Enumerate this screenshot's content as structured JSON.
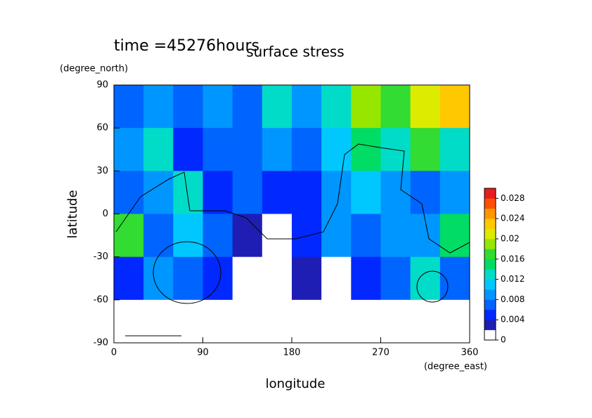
{
  "chart_data": {
    "type": "contour",
    "title": "surface stress",
    "annotation": "time =45276hours",
    "x_label": "longitude",
    "y_label": "latitude",
    "x_units": "(degree_east)",
    "y_units": "(degree_north)",
    "x": [
      15,
      45,
      75,
      105,
      135,
      165,
      195,
      225,
      255,
      285,
      315,
      345
    ],
    "y": [
      75,
      45,
      15,
      -15,
      -45,
      -75
    ],
    "values": [
      [
        0.006,
        0.008,
        0.006,
        0.008,
        0.006,
        0.012,
        0.008,
        0.012,
        0.018,
        0.016,
        0.02,
        0.022
      ],
      [
        0.008,
        0.012,
        0.004,
        0.006,
        0.006,
        0.008,
        0.006,
        0.01,
        0.014,
        0.012,
        0.016,
        0.012
      ],
      [
        0.006,
        0.008,
        0.012,
        0.004,
        0.006,
        0.004,
        0.004,
        0.008,
        0.01,
        0.008,
        0.006,
        0.008
      ],
      [
        0.016,
        0.006,
        0.01,
        0.006,
        0.002,
        0.001,
        0.004,
        0.008,
        0.006,
        0.008,
        0.008,
        0.014
      ],
      [
        0.004,
        0.008,
        0.006,
        0.004,
        0.001,
        0.001,
        0.002,
        0.001,
        0.004,
        0.006,
        0.012,
        0.006
      ],
      [
        0.001,
        0.001,
        0.001,
        0.001,
        0.001,
        0.001,
        0.001,
        0.001,
        0.001,
        0.001,
        0.001,
        0.001
      ]
    ],
    "xlim": [
      0,
      360
    ],
    "ylim": [
      -90,
      90
    ],
    "xticks": [
      0,
      90,
      180,
      270,
      360
    ],
    "yticks": [
      -90,
      -60,
      -30,
      0,
      30,
      60,
      90
    ],
    "levels": [
      0,
      0.002,
      0.004,
      0.006,
      0.008,
      0.01,
      0.012,
      0.014,
      0.016,
      0.018,
      0.02,
      0.022,
      0.024,
      0.026,
      0.028,
      0.03
    ],
    "colors": [
      "#ffffff",
      "#1e1eb4",
      "#0028ff",
      "#0064ff",
      "#0096ff",
      "#00c8ff",
      "#00dcc8",
      "#00dc64",
      "#32dc32",
      "#96e600",
      "#dceb00",
      "#ffc800",
      "#ff9600",
      "#ff5000",
      "#e61e1e"
    ],
    "cbar_ticks": [
      0,
      0.004,
      0.008,
      0.012,
      0.016,
      0.02,
      0.024,
      0.028
    ]
  }
}
